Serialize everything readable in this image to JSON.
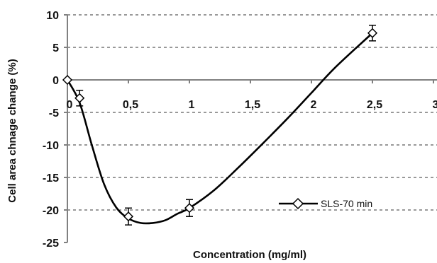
{
  "chart_data": {
    "type": "line",
    "xlabel": "Concentration (mg/ml)",
    "ylabel": "Cell area chnage change (%)",
    "xlim": [
      0,
      3
    ],
    "ylim": [
      -25,
      10
    ],
    "x_ticks": [
      0,
      0.5,
      1,
      1.5,
      2,
      2.5,
      3
    ],
    "x_tick_labels": [
      "0",
      "0,5",
      "1",
      "1,5",
      "2",
      "2,5",
      "3"
    ],
    "y_ticks": [
      10,
      5,
      0,
      -5,
      -10,
      -15,
      -20,
      -25
    ],
    "y_tick_labels": [
      "10",
      "5",
      "0",
      "-5",
      "-10",
      "-15",
      "-20",
      "-25"
    ],
    "grid": "horizontal dashed",
    "legend_position": "center-right",
    "series": [
      {
        "name": "SLS-70 min",
        "color": "#000000",
        "marker": "open-diamond",
        "x": [
          0,
          0.1,
          0.5,
          1,
          2.5
        ],
        "y": [
          0,
          -2.8,
          -21,
          -19.7,
          7.2
        ],
        "error": [
          0,
          1.2,
          1.3,
          1.3,
          1.2
        ]
      }
    ],
    "curve_x": [
      0,
      0.1,
      0.2,
      0.3,
      0.4,
      0.5,
      0.6,
      0.7,
      0.8,
      0.9,
      1.0,
      1.2,
      1.4,
      1.6,
      1.8,
      2.0,
      2.2,
      2.5
    ],
    "curve_y": [
      0,
      -3.5,
      -10,
      -16,
      -19.6,
      -21.3,
      -22,
      -22,
      -21.6,
      -20.6,
      -19.7,
      -17,
      -13.5,
      -9.8,
      -6,
      -2,
      2,
      7.2
    ]
  }
}
